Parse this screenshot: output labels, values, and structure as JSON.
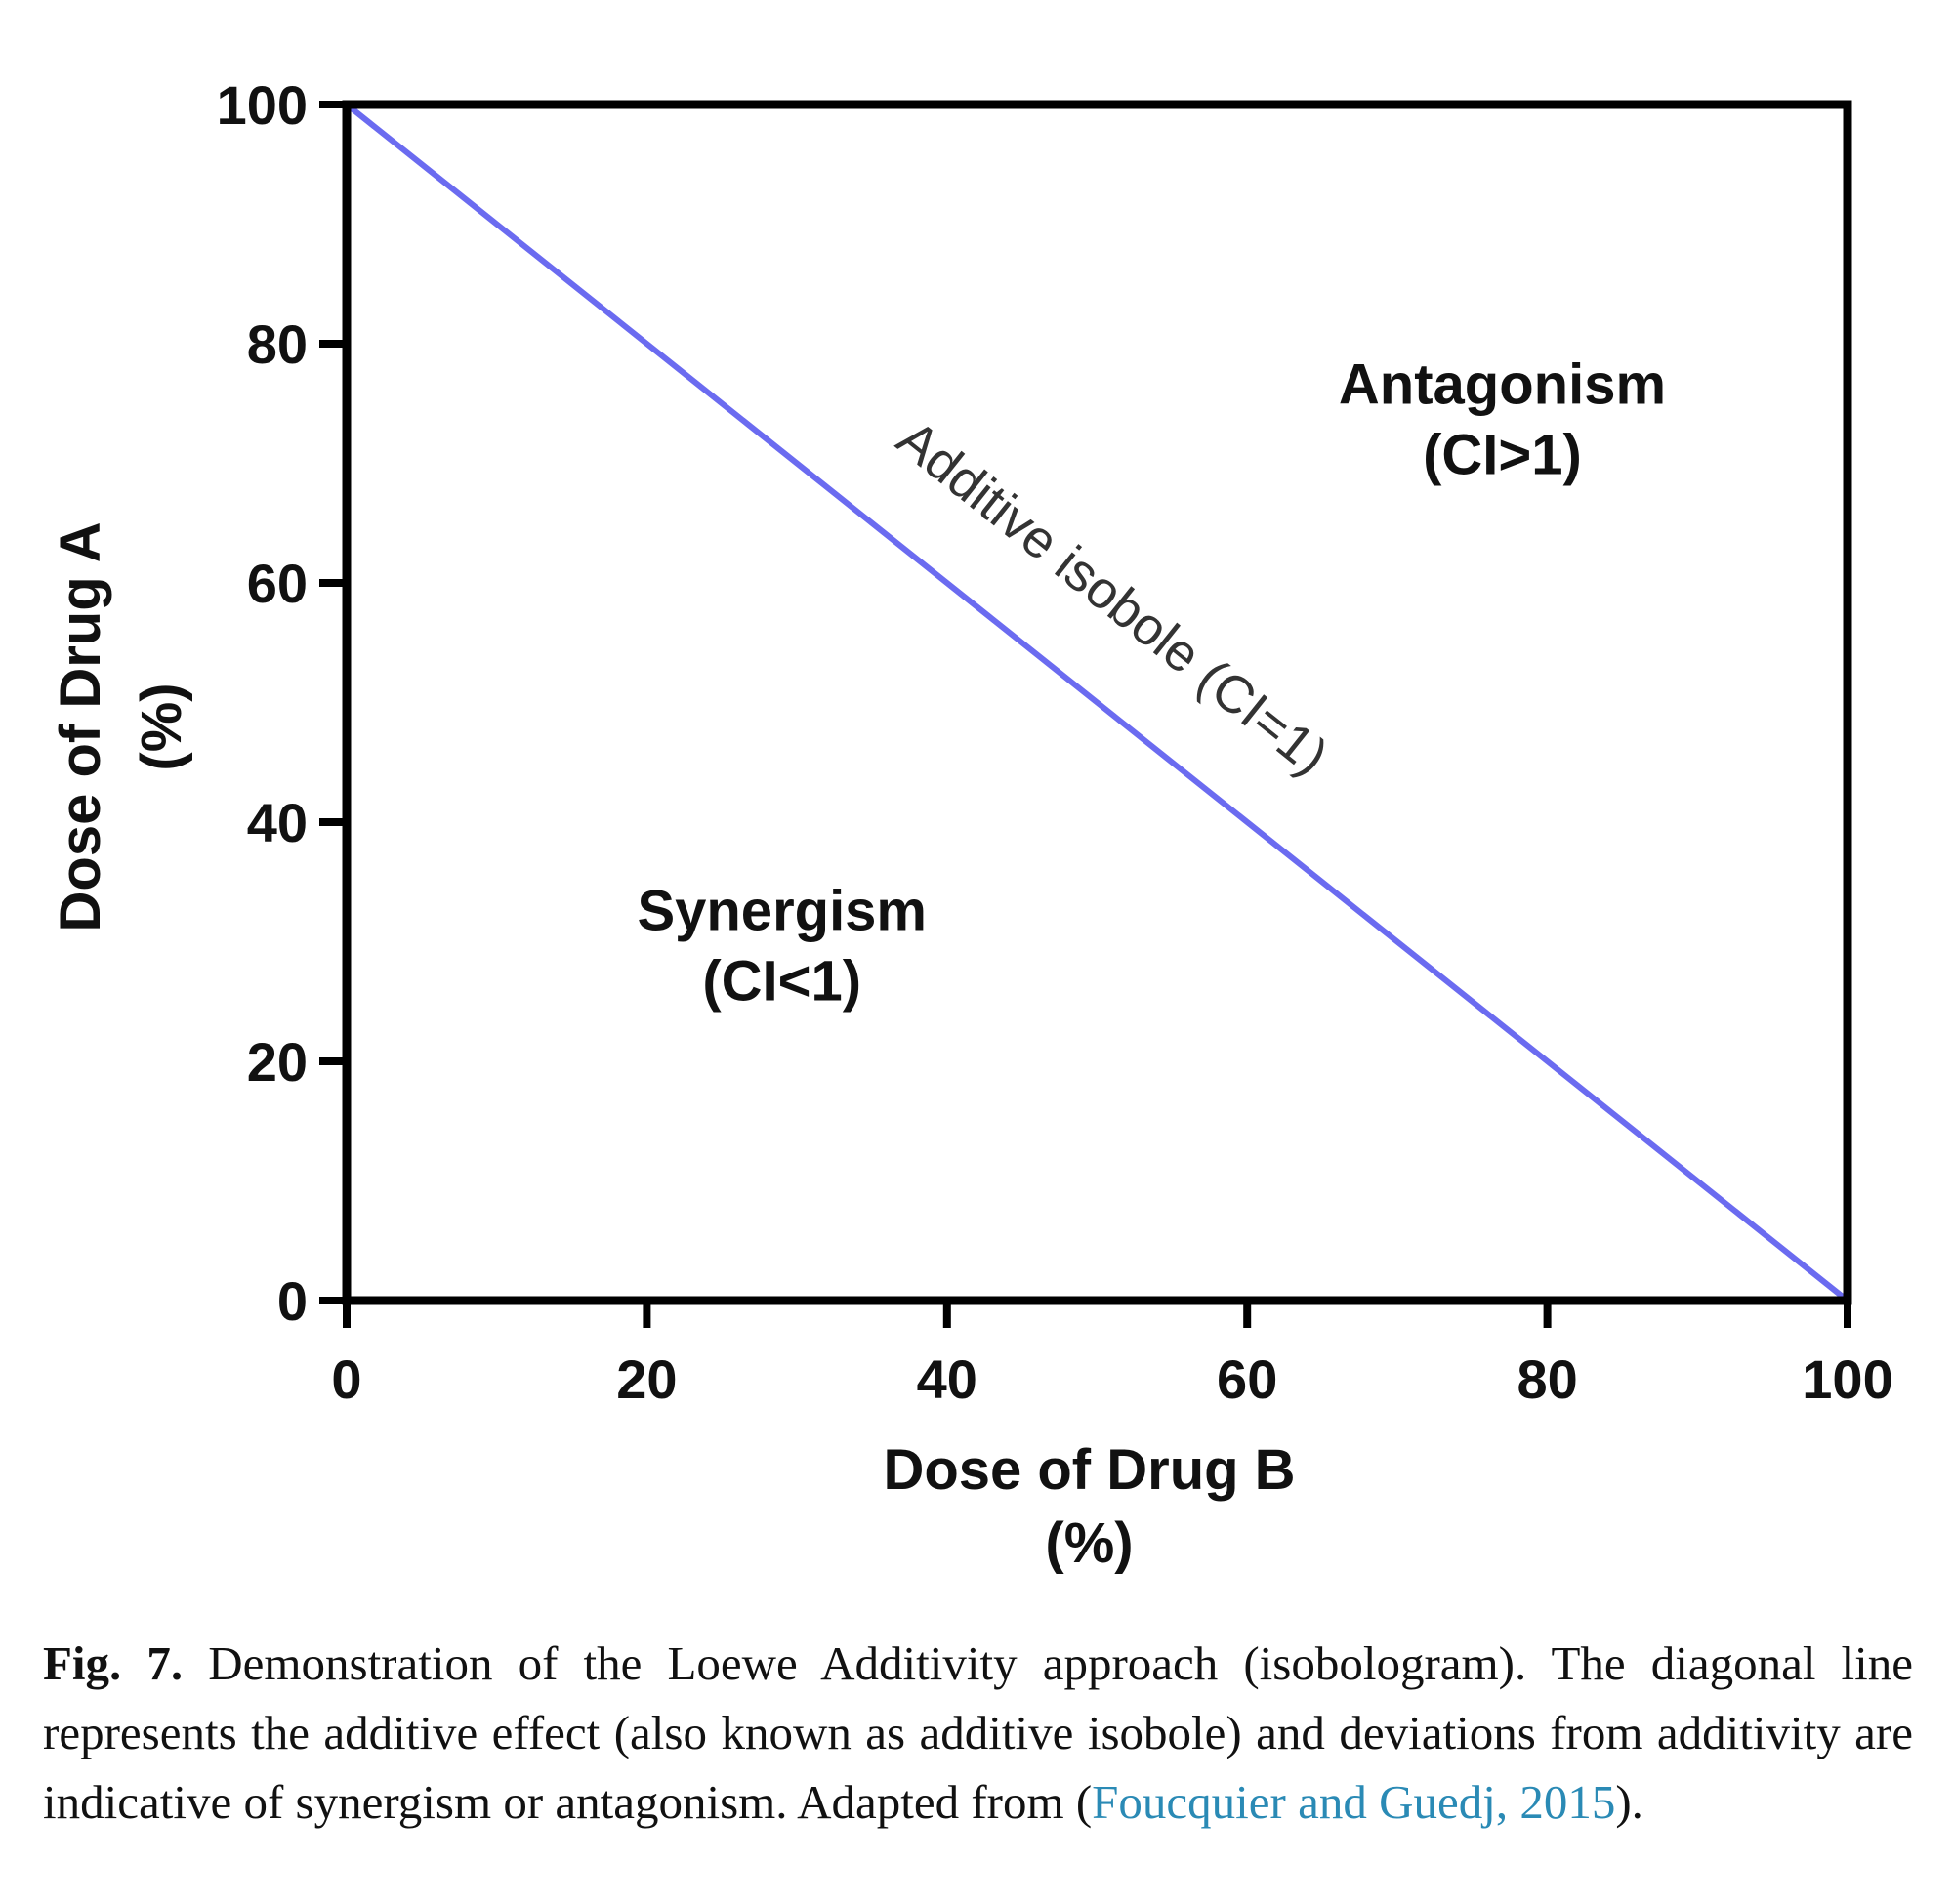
{
  "chart_data": {
    "type": "line",
    "series": [
      {
        "name": "Additive isobole (CI=1)",
        "x": [
          0,
          100
        ],
        "y": [
          100,
          0
        ],
        "color": "#6b6bf0"
      }
    ],
    "xlabel": [
      "Dose of Drug B",
      "(%)"
    ],
    "ylabel": [
      "Dose of Drug A",
      "(%)"
    ],
    "xlim": [
      0,
      100
    ],
    "ylim": [
      0,
      100
    ],
    "xticks": [
      0,
      20,
      40,
      60,
      80,
      100
    ],
    "yticks": [
      0,
      20,
      40,
      60,
      80,
      100
    ],
    "grid": false,
    "legend": "none",
    "annotations": [
      {
        "lines": [
          "Antagonism",
          "(CI>1)"
        ],
        "x": 77,
        "y": 75
      },
      {
        "lines": [
          "Synergism",
          "(CI<1)"
        ],
        "x": 29,
        "y": 31
      },
      {
        "lines": [
          "Additive isobole (CI=1)"
        ],
        "x": 49,
        "y": 55,
        "along_line": true
      }
    ]
  },
  "caption": {
    "label": "Fig. 7.",
    "text": " Demonstration of the Loewe Additivity approach (isobologram). The diagonal line represents the additive effect (also known as additive isobole) and deviations from additivity are indicative of synergism or antagonism. Adapted from (",
    "citation": "Foucquier and Guedj, 2015",
    "end": ")."
  }
}
